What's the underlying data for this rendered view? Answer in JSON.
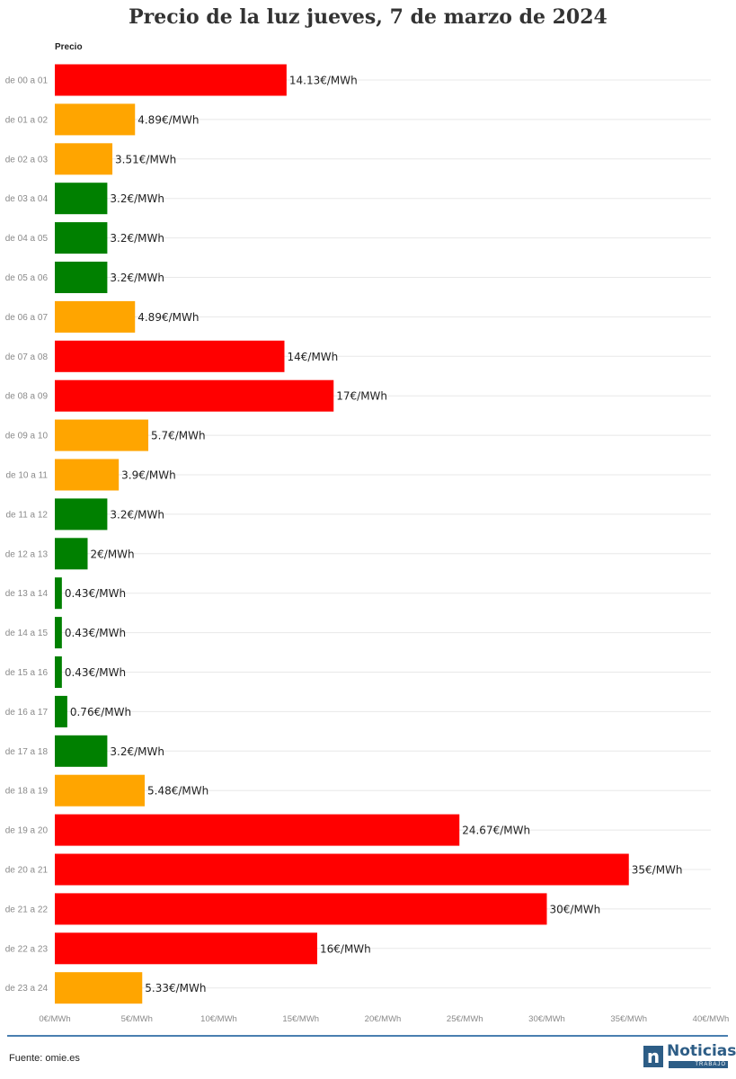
{
  "title": "Precio de la luz jueves, 7 de marzo de 2024",
  "source": "Fuente: omie.es",
  "logo": {
    "name": "Noticias",
    "subtitle": "TRABAJO"
  },
  "colors": {
    "high": "#ff0000",
    "medium": "#ffa500",
    "low": "#008000",
    "footer_rule": "#4a7fb0",
    "logo": "#2d5d86"
  },
  "chart_data": {
    "type": "bar",
    "orientation": "horizontal",
    "title": "Precio de la luz jueves, 7 de marzo de 2024",
    "series_name": "Precio",
    "unit": "€/MWh",
    "xlim": [
      0,
      40
    ],
    "ticks": [
      0,
      5,
      10,
      15,
      20,
      25,
      30,
      35,
      40
    ],
    "tick_labels": [
      "0€/MWh",
      "5€/MWh",
      "10€/MWh",
      "15€/MWh",
      "20€/MWh",
      "25€/MWh",
      "30€/MWh",
      "35€/MWh",
      "40€/MWh"
    ],
    "grid": true,
    "categories": [
      "de 00 a 01",
      "de 01 a 02",
      "de 02 a 03",
      "de 03 a 04",
      "de 04 a 05",
      "de 05 a 06",
      "de 06 a 07",
      "de 07 a 08",
      "de 08 a 09",
      "de 09 a 10",
      "de 10 a 11",
      "de 11 a 12",
      "de 12 a 13",
      "de 13 a 14",
      "de 14 a 15",
      "de 15 a 16",
      "de 16 a 17",
      "de 17 a 18",
      "de 18 a 19",
      "de 19 a 20",
      "de 20 a 21",
      "de 21 a 22",
      "de 22 a 23",
      "de 23 a 24"
    ],
    "values": [
      14.13,
      4.89,
      3.51,
      3.2,
      3.2,
      3.2,
      4.89,
      14,
      17,
      5.7,
      3.9,
      3.2,
      2,
      0.43,
      0.43,
      0.43,
      0.76,
      3.2,
      5.48,
      24.67,
      35,
      30,
      16,
      5.33
    ],
    "value_labels": [
      "14.13€/MWh",
      "4.89€/MWh",
      "3.51€/MWh",
      "3.2€/MWh",
      "3.2€/MWh",
      "3.2€/MWh",
      "4.89€/MWh",
      "14€/MWh",
      "17€/MWh",
      "5.7€/MWh",
      "3.9€/MWh",
      "3.2€/MWh",
      "2€/MWh",
      "0.43€/MWh",
      "0.43€/MWh",
      "0.43€/MWh",
      "0.76€/MWh",
      "3.2€/MWh",
      "5.48€/MWh",
      "24.67€/MWh",
      "35€/MWh",
      "30€/MWh",
      "16€/MWh",
      "5.33€/MWh"
    ],
    "bar_levels": [
      "high",
      "medium",
      "medium",
      "low",
      "low",
      "low",
      "medium",
      "high",
      "high",
      "medium",
      "medium",
      "low",
      "low",
      "low",
      "low",
      "low",
      "low",
      "low",
      "medium",
      "high",
      "high",
      "high",
      "high",
      "medium"
    ]
  }
}
